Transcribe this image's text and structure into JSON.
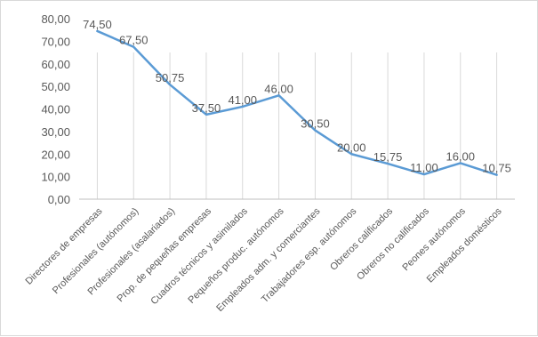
{
  "chart_data": {
    "type": "line",
    "categories": [
      "Directores de empresas",
      "Profesionales (autónomos)",
      "Profesionales (asalariados)",
      "Prop. de pequeñas empresas",
      "Cuadros técnicos y asimilados",
      "Pequeños produc. autónomos",
      "Empleados adm. y comerciantes",
      "Trabajadores esp. autónomos",
      "Obreros calificados",
      "Obreros no calificados",
      "Peones autónomos",
      "Empleados domésticos"
    ],
    "values": [
      74.5,
      67.5,
      50.75,
      37.5,
      41.0,
      46.0,
      30.5,
      20.0,
      15.75,
      11.0,
      16.0,
      10.75
    ],
    "data_labels": [
      "74,50",
      "67,50",
      "50,75",
      "37,50",
      "41,00",
      "46,00",
      "30,50",
      "20,00",
      "15,75",
      "11,00",
      "16,00",
      "10,75"
    ],
    "y_ticks": [
      0,
      10,
      20,
      30,
      40,
      50,
      60,
      70,
      80
    ],
    "y_tick_labels": [
      "0,00",
      "10,00",
      "20,00",
      "30,00",
      "40,00",
      "50,00",
      "60,00",
      "70,00",
      "80,00"
    ],
    "ylim": [
      0,
      80
    ],
    "title": "",
    "xlabel": "",
    "ylabel": "",
    "grid": "vertical gridlines at categories",
    "legend": "none",
    "line_color": "#5b9bd5",
    "grid_color": "#d9d9d9",
    "axis_color": "#bfbfbf"
  }
}
